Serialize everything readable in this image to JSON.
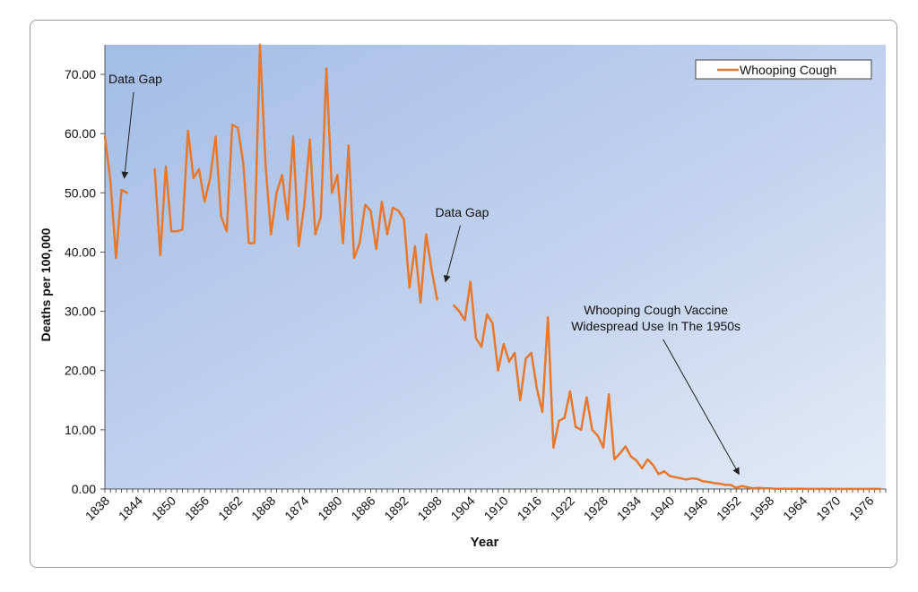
{
  "chart_data": {
    "type": "line",
    "title": "",
    "xlabel": "Year",
    "ylabel": "Deaths per 100,000",
    "ylim": [
      0,
      75
    ],
    "xlim": [
      1838,
      1979
    ],
    "y_ticks": [
      "0.00",
      "10.00",
      "20.00",
      "30.00",
      "40.00",
      "50.00",
      "60.00",
      "70.00"
    ],
    "x_ticks": [
      "1838",
      "1844",
      "1850",
      "1856",
      "1862",
      "1868",
      "1874",
      "1880",
      "1886",
      "1892",
      "1898",
      "1904",
      "1910",
      "1916",
      "1922",
      "1928",
      "1934",
      "1940",
      "1946",
      "1952",
      "1958",
      "1964",
      "1970",
      "1976"
    ],
    "legend": {
      "label": "Whooping Cough",
      "position": "top-right"
    },
    "series": [
      {
        "name": "Whooping Cough",
        "color": "#e8782c",
        "segments": [
          {
            "x": [
              1838,
              1839,
              1840,
              1841,
              1842,
              1843
            ],
            "y": [
              59.5,
              52.0,
              39.0,
              50.5,
              50.0,
              null
            ]
          },
          {
            "x": [
              1847,
              1848,
              1849,
              1850,
              1851,
              1852,
              1853,
              1854,
              1855,
              1856,
              1857,
              1858,
              1859,
              1860,
              1861,
              1862,
              1863,
              1864,
              1865,
              1866,
              1867,
              1868,
              1869,
              1870,
              1871,
              1872,
              1873,
              1874,
              1875,
              1876,
              1877,
              1878,
              1879,
              1880,
              1881,
              1882,
              1883,
              1884,
              1885,
              1886,
              1887,
              1888,
              1889,
              1890,
              1891,
              1892,
              1893,
              1894,
              1895,
              1896,
              1897,
              1898,
              1899
            ],
            "y": [
              54.0,
              39.5,
              54.5,
              43.5,
              43.5,
              43.8,
              60.5,
              52.5,
              54.0,
              48.5,
              52.5,
              59.5,
              46.0,
              43.5,
              61.5,
              61.0,
              55.0,
              41.5,
              41.5,
              75.0,
              55.0,
              43.0,
              50.0,
              53.0,
              45.5,
              59.5,
              41.0,
              48.0,
              59.0,
              43.0,
              46.0,
              71.0,
              50.0,
              53.0,
              41.5,
              58.0,
              39.0,
              41.5,
              48.0,
              47.0,
              40.5,
              48.5,
              43.0,
              47.5,
              47.0,
              45.5,
              34.0,
              41.0,
              31.5,
              43.0,
              37.0,
              32.0,
              null
            ]
          },
          {
            "x": [
              1901,
              1902,
              1903,
              1904,
              1905,
              1906,
              1907,
              1908,
              1909,
              1910,
              1911,
              1912,
              1913,
              1914,
              1915,
              1916,
              1917,
              1918,
              1919,
              1920,
              1921,
              1922,
              1923,
              1924,
              1925,
              1926,
              1927,
              1928,
              1929,
              1930,
              1931,
              1932,
              1933,
              1934,
              1935,
              1936,
              1937,
              1938,
              1939,
              1940,
              1941,
              1942,
              1943,
              1944,
              1945,
              1946,
              1947,
              1948,
              1949,
              1950,
              1951,
              1952,
              1953,
              1954,
              1955,
              1956,
              1957,
              1958,
              1959,
              1960,
              1961,
              1962,
              1963,
              1964,
              1965,
              1966,
              1967,
              1968,
              1969,
              1970,
              1971,
              1972,
              1973,
              1974,
              1975,
              1976,
              1977,
              1978
            ],
            "y": [
              31.0,
              30.0,
              28.5,
              35.0,
              25.5,
              24.0,
              29.5,
              28.0,
              20.0,
              24.5,
              21.5,
              23.0,
              15.0,
              22.0,
              23.0,
              17.0,
              13.0,
              29.0,
              7.0,
              11.5,
              12.0,
              16.5,
              10.5,
              10.0,
              15.5,
              10.0,
              9.0,
              7.0,
              16.0,
              5.0,
              6.0,
              7.2,
              5.5,
              4.8,
              3.5,
              5.0,
              4.0,
              2.5,
              3.0,
              2.2,
              2.0,
              1.8,
              1.6,
              1.8,
              1.7,
              1.3,
              1.2,
              1.0,
              0.9,
              0.7,
              0.7,
              0.2,
              0.5,
              0.3,
              0.1,
              0.2,
              0.1,
              0.1,
              0.05,
              0.05,
              0.05,
              0.05,
              0.03,
              0.03,
              0.02,
              0.02,
              0.02,
              0.01,
              0.01,
              0.02,
              0.01,
              0.01,
              0.01,
              0.01,
              0.01,
              0.01,
              0.01,
              0.01
            ]
          }
        ]
      }
    ],
    "annotations": [
      {
        "text": [
          "Data Gap"
        ],
        "x": 1843.5,
        "y": 68.5,
        "arrow_to": [
          1841.5,
          52.5
        ]
      },
      {
        "text": [
          "Data Gap"
        ],
        "x": 1902.5,
        "y": 46.0,
        "arrow_to": [
          1899.5,
          35.0
        ]
      },
      {
        "text": [
          "Whooping Cough Vaccine",
          "Widespread Use In The 1950s"
        ],
        "x": 1937.5,
        "y": 29.5,
        "arrow_to": [
          1952.5,
          2.5
        ]
      }
    ]
  }
}
